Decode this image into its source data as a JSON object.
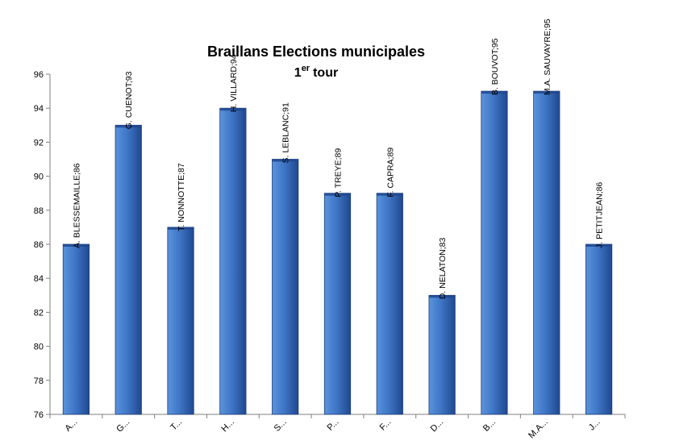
{
  "chart_data": {
    "type": "bar",
    "title": "Braillans Elections municipales",
    "subtitle": {
      "number": "1",
      "superscript": "er",
      "word": "tour"
    },
    "categories": [
      "A...",
      "G...",
      "T...",
      "H...",
      "S...",
      "P...",
      "F...",
      "D...",
      "B...",
      "M.A...",
      "J..."
    ],
    "series": [
      {
        "values": [
          86,
          93,
          87,
          94,
          91,
          89,
          89,
          83,
          95,
          95,
          86
        ],
        "labels": [
          "A. BLESSEMAILLE;86",
          "G. CUENOT;93",
          "T. NONNOTTE;87",
          "H. VILLARD;94",
          "S. LEBLANC;91",
          "P. TREYE;89",
          "F. CAPRA;89",
          "D. NELATON;83",
          "B. BOUVOT;95",
          "M.A. SAUVAYRE;95",
          "J. PETITJEAN;86"
        ]
      }
    ],
    "ylim": [
      76,
      96
    ],
    "yticks": [
      76,
      78,
      80,
      82,
      84,
      86,
      88,
      90,
      92,
      94,
      96
    ],
    "grid": false,
    "legend": "none",
    "colors": {
      "bar_light": "#5b93dc",
      "bar_mid": "#3f76c6",
      "bar_dark": "#20488f",
      "bar_border": "#1f3f78",
      "axis": "#808080"
    }
  }
}
